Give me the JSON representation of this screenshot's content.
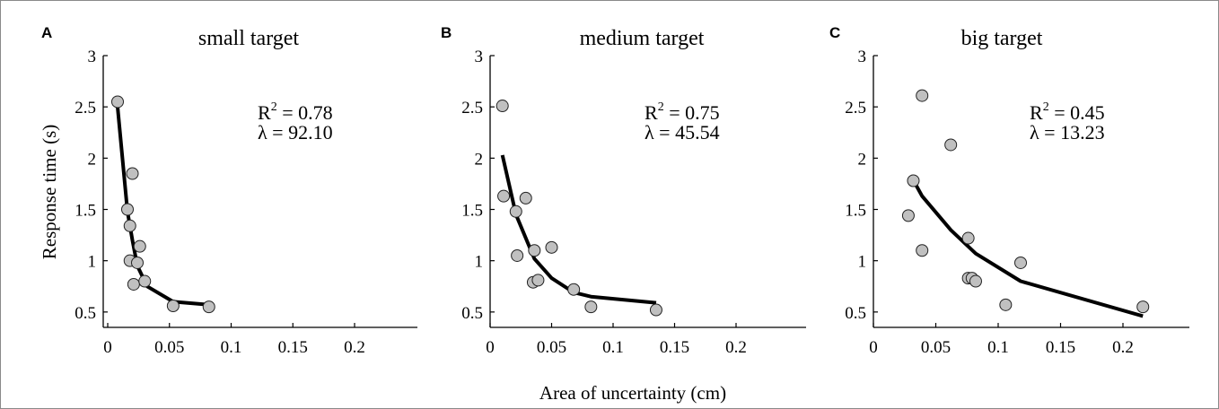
{
  "figure": {
    "xlabel": "Area of uncertainty (cm)",
    "ylabel": "Response time (s)"
  },
  "chart_data": [
    {
      "type": "scatter",
      "panel": "A",
      "title": "small target",
      "xlim": [
        0,
        0.25
      ],
      "ylim": [
        0.35,
        3
      ],
      "x_ticks": [
        "0",
        "0.05",
        "0.1",
        "0.15",
        "0.2"
      ],
      "x_tick_values": [
        0,
        0.05,
        0.1,
        0.15,
        0.2
      ],
      "y_ticks": [
        "0.5",
        "1",
        "1.5",
        "2",
        "2.5",
        "3"
      ],
      "y_tick_values": [
        0.5,
        1,
        1.5,
        2,
        2.5,
        3
      ],
      "stats": {
        "r2_label": "R",
        "r2_sup": "2",
        "r2_value": " = 0.78",
        "lambda_label": "λ",
        "lambda_value": "  = 92.10"
      },
      "points": [
        {
          "x": 0.008,
          "y": 2.55
        },
        {
          "x": 0.016,
          "y": 1.5
        },
        {
          "x": 0.018,
          "y": 1.34
        },
        {
          "x": 0.02,
          "y": 1.85
        },
        {
          "x": 0.018,
          "y": 1.0
        },
        {
          "x": 0.024,
          "y": 0.98
        },
        {
          "x": 0.026,
          "y": 1.14
        },
        {
          "x": 0.021,
          "y": 0.77
        },
        {
          "x": 0.03,
          "y": 0.8
        },
        {
          "x": 0.053,
          "y": 0.56
        },
        {
          "x": 0.082,
          "y": 0.55
        }
      ],
      "fit": [
        {
          "x": 0.008,
          "y": 2.5
        },
        {
          "x": 0.016,
          "y": 1.48
        },
        {
          "x": 0.02,
          "y": 1.2
        },
        {
          "x": 0.024,
          "y": 0.95
        },
        {
          "x": 0.032,
          "y": 0.75
        },
        {
          "x": 0.053,
          "y": 0.6
        },
        {
          "x": 0.082,
          "y": 0.57
        }
      ]
    },
    {
      "type": "scatter",
      "panel": "B",
      "title": "medium target",
      "xlim": [
        0,
        0.25
      ],
      "ylim": [
        0.35,
        3
      ],
      "x_ticks": [
        "0",
        "0.05",
        "0.1",
        "0.15",
        "0.2"
      ],
      "x_tick_values": [
        0,
        0.05,
        0.1,
        0.15,
        0.2
      ],
      "y_ticks": [
        "0.5",
        "1",
        "1.5",
        "2",
        "2.5",
        "3"
      ],
      "y_tick_values": [
        0.5,
        1,
        1.5,
        2,
        2.5,
        3
      ],
      "stats": {
        "r2_label": "R",
        "r2_sup": "2",
        "r2_value": " = 0.75",
        "lambda_label": "λ",
        "lambda_value": "  = 45.54"
      },
      "points": [
        {
          "x": 0.01,
          "y": 2.51
        },
        {
          "x": 0.011,
          "y": 1.63
        },
        {
          "x": 0.021,
          "y": 1.48
        },
        {
          "x": 0.029,
          "y": 1.61
        },
        {
          "x": 0.022,
          "y": 1.05
        },
        {
          "x": 0.036,
          "y": 1.1
        },
        {
          "x": 0.05,
          "y": 1.13
        },
        {
          "x": 0.035,
          "y": 0.79
        },
        {
          "x": 0.039,
          "y": 0.81
        },
        {
          "x": 0.068,
          "y": 0.72
        },
        {
          "x": 0.082,
          "y": 0.55
        },
        {
          "x": 0.135,
          "y": 0.52
        }
      ],
      "fit": [
        {
          "x": 0.01,
          "y": 2.03
        },
        {
          "x": 0.021,
          "y": 1.45
        },
        {
          "x": 0.036,
          "y": 1.02
        },
        {
          "x": 0.05,
          "y": 0.83
        },
        {
          "x": 0.068,
          "y": 0.69
        },
        {
          "x": 0.082,
          "y": 0.65
        },
        {
          "x": 0.135,
          "y": 0.59
        }
      ]
    },
    {
      "type": "scatter",
      "panel": "C",
      "title": "big target",
      "xlim": [
        0,
        0.25
      ],
      "ylim": [
        0.35,
        3
      ],
      "x_ticks": [
        "0",
        "0.05",
        "0.1",
        "0.15",
        "0.2"
      ],
      "x_tick_values": [
        0,
        0.05,
        0.1,
        0.15,
        0.2
      ],
      "y_ticks": [
        "0.5",
        "1",
        "1.5",
        "2",
        "2.5",
        "3"
      ],
      "y_tick_values": [
        0.5,
        1,
        1.5,
        2,
        2.5,
        3
      ],
      "stats": {
        "r2_label": "R",
        "r2_sup": "2",
        "r2_value": " = 0.45",
        "lambda_label": "λ",
        "lambda_value": "  = 13.23"
      },
      "points": [
        {
          "x": 0.039,
          "y": 2.61
        },
        {
          "x": 0.062,
          "y": 2.13
        },
        {
          "x": 0.032,
          "y": 1.78
        },
        {
          "x": 0.028,
          "y": 1.44
        },
        {
          "x": 0.076,
          "y": 1.22
        },
        {
          "x": 0.039,
          "y": 1.1
        },
        {
          "x": 0.118,
          "y": 0.98
        },
        {
          "x": 0.076,
          "y": 0.83
        },
        {
          "x": 0.079,
          "y": 0.83
        },
        {
          "x": 0.082,
          "y": 0.8
        },
        {
          "x": 0.106,
          "y": 0.57
        },
        {
          "x": 0.216,
          "y": 0.55
        }
      ],
      "fit": [
        {
          "x": 0.03,
          "y": 1.83
        },
        {
          "x": 0.039,
          "y": 1.63
        },
        {
          "x": 0.062,
          "y": 1.3
        },
        {
          "x": 0.082,
          "y": 1.07
        },
        {
          "x": 0.118,
          "y": 0.8
        },
        {
          "x": 0.216,
          "y": 0.46
        }
      ]
    }
  ],
  "colors": {
    "marker_fill": "#c0c0c0",
    "marker_stroke": "#222222",
    "fit_line": "#000000",
    "frame": "#8a8a8a"
  }
}
